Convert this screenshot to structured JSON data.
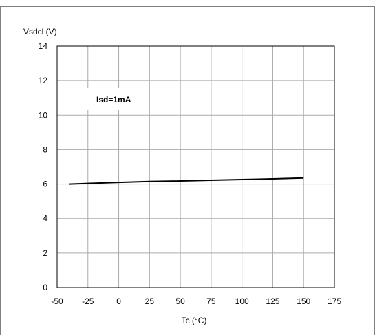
{
  "chart_data": {
    "type": "line",
    "title": "",
    "xlabel": "Tc (°C)",
    "ylabel": "Vsdcl (V)",
    "xlim": [
      -50,
      175
    ],
    "ylim": [
      0,
      14
    ],
    "x_ticks": [
      "-50",
      "-25",
      "0",
      "25",
      "50",
      "75",
      "100",
      "125",
      "150",
      "175"
    ],
    "y_ticks": [
      "0",
      "2",
      "4",
      "6",
      "8",
      "10",
      "12",
      "14"
    ],
    "grid": true,
    "annotation": "Isd=1mA",
    "series": [
      {
        "x": [
          -40,
          0,
          25,
          50,
          75,
          100,
          125,
          150
        ],
        "y": [
          6.0,
          6.1,
          6.15,
          6.18,
          6.22,
          6.26,
          6.3,
          6.35
        ]
      }
    ],
    "colors": {
      "line": "#000000",
      "grid": "#aaaaaa",
      "frame": "#000000"
    }
  }
}
